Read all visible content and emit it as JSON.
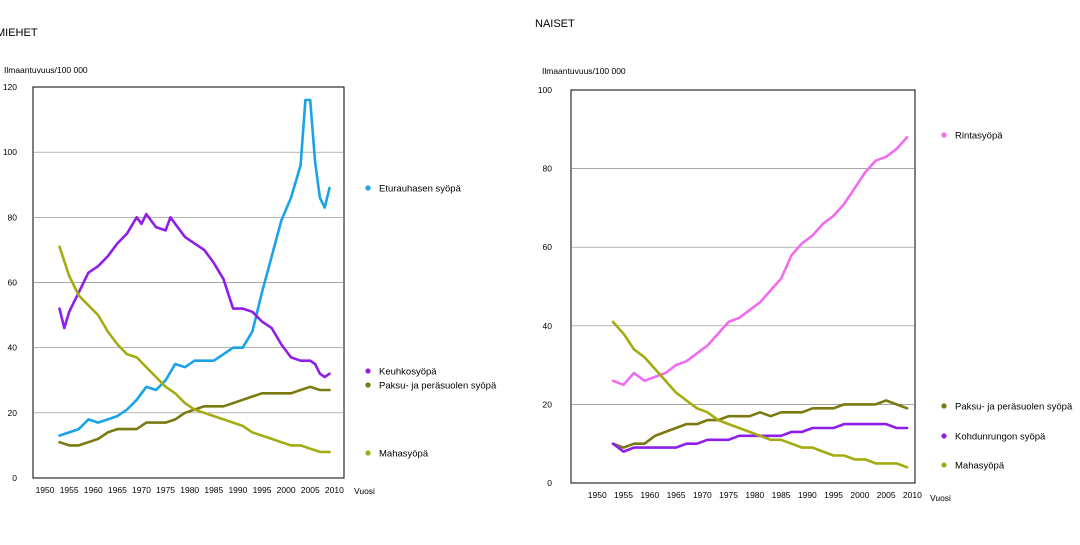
{
  "chart_data": [
    {
      "type": "line",
      "title": "MIEHET",
      "ylabel": "Ilmaantuvuus/100 000",
      "xlabel": "Vuosi",
      "ylim": [
        0,
        120
      ],
      "xlim": [
        1950,
        2010
      ],
      "yticks": [
        "0",
        "20",
        "40",
        "60",
        "80",
        "100",
        "120"
      ],
      "xticks": [
        "1950",
        "1955",
        "1960",
        "1965",
        "1970",
        "1975",
        "1980",
        "1985",
        "1990",
        "1995",
        "2000",
        "2005",
        "2010"
      ],
      "grid": "horizontal",
      "legend": "right",
      "series": [
        {
          "name": "Eturauhasen syöpä",
          "color": "#1aa3e8",
          "x": [
            1953,
            1955,
            1957,
            1959,
            1961,
            1963,
            1965,
            1967,
            1969,
            1971,
            1973,
            1975,
            1977,
            1979,
            1981,
            1983,
            1985,
            1987,
            1989,
            1991,
            1993,
            1995,
            1997,
            1999,
            2001,
            2003,
            2004,
            2005,
            2006,
            2007,
            2008,
            2009
          ],
          "y": [
            13,
            14,
            15,
            18,
            17,
            18,
            19,
            21,
            24,
            28,
            27,
            30,
            35,
            34,
            36,
            36,
            36,
            38,
            40,
            40,
            45,
            57,
            68,
            79,
            86,
            96,
            116,
            116,
            97,
            86,
            83,
            89
          ]
        },
        {
          "name": "Keuhkosyöpä",
          "color": "#8e1ee8",
          "x": [
            1953,
            1954,
            1955,
            1957,
            1959,
            1961,
            1963,
            1965,
            1967,
            1969,
            1970,
            1971,
            1973,
            1975,
            1976,
            1977,
            1979,
            1981,
            1983,
            1985,
            1987,
            1989,
            1991,
            1993,
            1995,
            1997,
            1999,
            2001,
            2003,
            2005,
            2006,
            2007,
            2008,
            2009
          ],
          "y": [
            52,
            46,
            51,
            57,
            63,
            65,
            68,
            72,
            75,
            80,
            78,
            81,
            77,
            76,
            80,
            78,
            74,
            72,
            70,
            66,
            61,
            52,
            52,
            51,
            48,
            46,
            41,
            37,
            36,
            36,
            35,
            32,
            31,
            32
          ]
        },
        {
          "name": "Paksu- ja peräsuolen syöpä",
          "color": "#7a7a10",
          "x": [
            1953,
            1955,
            1957,
            1959,
            1961,
            1963,
            1965,
            1967,
            1969,
            1971,
            1973,
            1975,
            1977,
            1979,
            1981,
            1983,
            1985,
            1987,
            1989,
            1991,
            1993,
            1995,
            1997,
            1999,
            2001,
            2003,
            2005,
            2007,
            2009
          ],
          "y": [
            11,
            10,
            10,
            11,
            12,
            14,
            15,
            15,
            15,
            17,
            17,
            17,
            18,
            20,
            21,
            22,
            22,
            22,
            23,
            24,
            25,
            26,
            26,
            26,
            26,
            27,
            28,
            27,
            27
          ]
        },
        {
          "name": "Mahasyöpä",
          "color": "#a3ac12",
          "x": [
            1953,
            1955,
            1957,
            1959,
            1961,
            1963,
            1965,
            1967,
            1969,
            1971,
            1973,
            1975,
            1977,
            1979,
            1981,
            1983,
            1985,
            1987,
            1989,
            1991,
            1993,
            1995,
            1997,
            1999,
            2001,
            2003,
            2005,
            2007,
            2009
          ],
          "y": [
            71,
            62,
            56,
            53,
            50,
            45,
            41,
            38,
            37,
            34,
            31,
            28,
            26,
            23,
            21,
            20,
            19,
            18,
            17,
            16,
            14,
            13,
            12,
            11,
            10,
            10,
            9,
            8,
            8
          ]
        }
      ]
    },
    {
      "type": "line",
      "title": "NAISET",
      "ylabel": "Ilmaantuvuus/100 000",
      "xlabel": "Vuosi",
      "ylim": [
        0,
        100
      ],
      "xlim": [
        1945,
        2010
      ],
      "yticks": [
        "0",
        "20",
        "40",
        "60",
        "80",
        "100"
      ],
      "xticks": [
        "1950",
        "1955",
        "1960",
        "1965",
        "1970",
        "1975",
        "1980",
        "1985",
        "1990",
        "1995",
        "2000",
        "2005",
        "2010"
      ],
      "grid": "horizontal",
      "legend": "right",
      "series": [
        {
          "name": "Rintasyöpä",
          "color": "#f06cf0",
          "x": [
            1953,
            1955,
            1957,
            1959,
            1961,
            1963,
            1965,
            1967,
            1969,
            1971,
            1973,
            1975,
            1977,
            1979,
            1981,
            1983,
            1985,
            1987,
            1989,
            1991,
            1993,
            1995,
            1997,
            1999,
            2001,
            2003,
            2005,
            2007,
            2009
          ],
          "y": [
            26,
            25,
            28,
            26,
            27,
            28,
            30,
            31,
            33,
            35,
            38,
            41,
            42,
            44,
            46,
            49,
            52,
            58,
            61,
            63,
            66,
            68,
            71,
            75,
            79,
            82,
            83,
            85,
            88
          ]
        },
        {
          "name": "Paksu- ja peräsuolen syöpä",
          "color": "#7a7a10",
          "x": [
            1953,
            1955,
            1957,
            1959,
            1961,
            1963,
            1965,
            1967,
            1969,
            1971,
            1973,
            1975,
            1977,
            1979,
            1981,
            1983,
            1985,
            1987,
            1989,
            1991,
            1993,
            1995,
            1997,
            1999,
            2001,
            2003,
            2005,
            2007,
            2009
          ],
          "y": [
            10,
            9,
            10,
            10,
            12,
            13,
            14,
            15,
            15,
            16,
            16,
            17,
            17,
            17,
            18,
            17,
            18,
            18,
            18,
            19,
            19,
            19,
            20,
            20,
            20,
            20,
            21,
            20,
            19
          ]
        },
        {
          "name": "Kohdunrungon syöpä",
          "color": "#8e1ee8",
          "x": [
            1953,
            1955,
            1957,
            1959,
            1961,
            1963,
            1965,
            1967,
            1969,
            1971,
            1973,
            1975,
            1977,
            1979,
            1981,
            1983,
            1985,
            1987,
            1989,
            1991,
            1993,
            1995,
            1997,
            1999,
            2001,
            2003,
            2005,
            2007,
            2009
          ],
          "y": [
            10,
            8,
            9,
            9,
            9,
            9,
            9,
            10,
            10,
            11,
            11,
            11,
            12,
            12,
            12,
            12,
            12,
            13,
            13,
            14,
            14,
            14,
            15,
            15,
            15,
            15,
            15,
            14,
            14
          ]
        },
        {
          "name": "Mahasyöpä",
          "color": "#a3ac12",
          "x": [
            1953,
            1955,
            1957,
            1959,
            1961,
            1963,
            1965,
            1967,
            1969,
            1971,
            1973,
            1975,
            1977,
            1979,
            1981,
            1983,
            1985,
            1987,
            1989,
            1991,
            1993,
            1995,
            1997,
            1999,
            2001,
            2003,
            2005,
            2007,
            2009
          ],
          "y": [
            41,
            38,
            34,
            32,
            29,
            26,
            23,
            21,
            19,
            18,
            16,
            15,
            14,
            13,
            12,
            11,
            11,
            10,
            9,
            9,
            8,
            7,
            7,
            6,
            6,
            5,
            5,
            5,
            4
          ]
        }
      ]
    }
  ]
}
